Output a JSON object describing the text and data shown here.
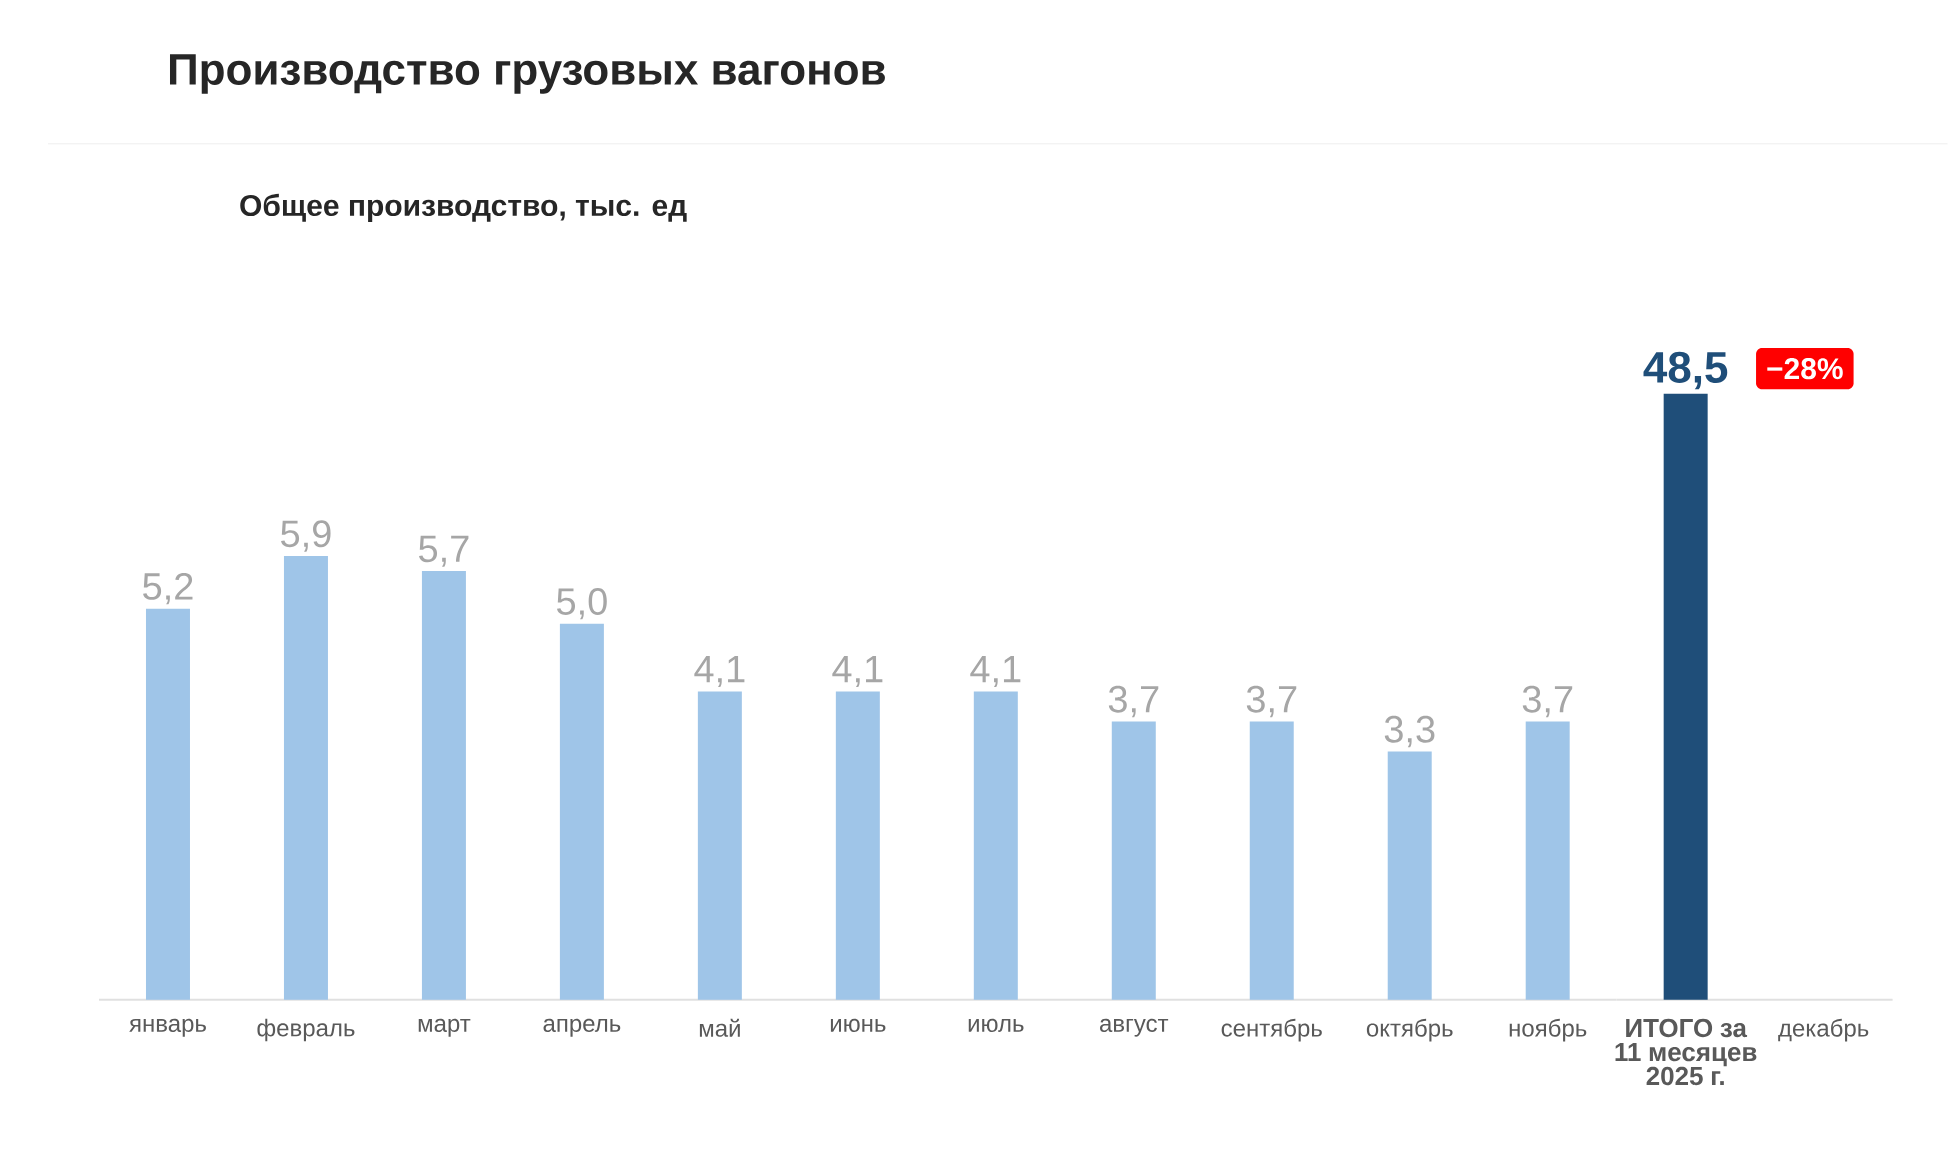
{
  "chart_data": [
    {
      "type": "bar",
      "title": "Производство грузовых вагонов",
      "subtitle": "Общее производство, тыс. ед",
      "categories": [
        "январь",
        "февраль",
        "март",
        "апрель",
        "май",
        "июнь",
        "июль",
        "август",
        "сентябрь",
        "октябрь",
        "ноябрь"
      ],
      "color": "#9fc5e8",
      "values": [
        5.2,
        5.9,
        5.7,
        5.0,
        4.1,
        4.1,
        4.1,
        3.7,
        3.7,
        3.3,
        3.7
      ],
      "value_labels": [
        "5,2",
        "5,9",
        "5,7",
        "5,0",
        "4,1",
        "4,1",
        "4,1",
        "3,7",
        "3,7",
        "3,3",
        "3,7"
      ],
      "tick_labels": "x"
    },
    {
      "type": "bar",
      "categories": [
        "ИТОГО за 11 месяцев 2025 г.",
        "декабрь"
      ],
      "color": "#1f4e79",
      "values": [
        48.5,
        null
      ],
      "value_labels": [
        "48,5",
        null
      ],
      "tick_labels": "x",
      "annotations": [
        "−28%"
      ]
    }
  ]
}
